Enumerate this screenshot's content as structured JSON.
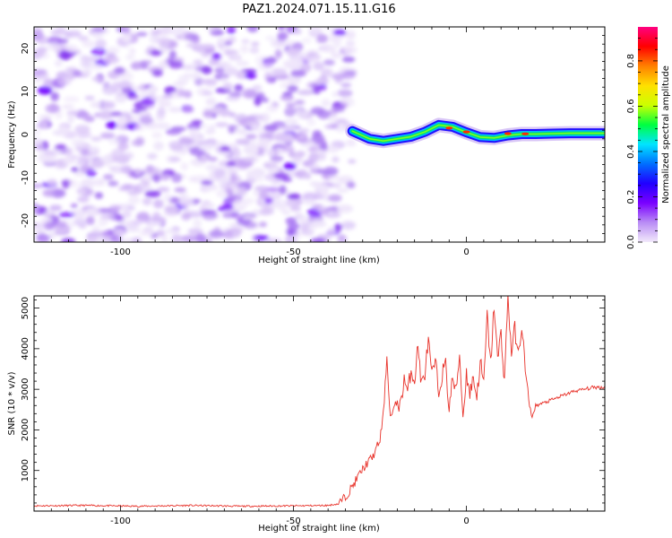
{
  "figure": {
    "title": "PAZ1.2024.071.15.11.G16"
  },
  "chart_data": [
    {
      "type": "heatmap",
      "xlabel": "Height of straight line (km)",
      "ylabel": "Frequency (Hz)",
      "xlim": [
        -125,
        40
      ],
      "ylim": [
        -25,
        25
      ],
      "xticks": [
        -100,
        -50,
        0
      ],
      "yticks": [
        -20,
        -10,
        0,
        10,
        20
      ],
      "noise_region_x": [
        -125,
        -33
      ],
      "signal_start_x": -33,
      "signal_trace": {
        "x": [
          -33,
          -28,
          -24,
          -20,
          -16,
          -12,
          -8,
          -4,
          0,
          4,
          8,
          12,
          16,
          20,
          25,
          30,
          35,
          40
        ],
        "y": [
          0.8,
          -1.0,
          -1.5,
          -1.0,
          -0.5,
          0.6,
          2.2,
          1.8,
          0.5,
          -0.6,
          -0.8,
          -0.2,
          0.1,
          0.1,
          0.2,
          0.3,
          0.3,
          0.3
        ]
      },
      "colorbar": {
        "label": "Normalized spectral amplitude",
        "ticks": [
          "0.0",
          "0.2",
          "0.4",
          "0.6",
          "0.8"
        ],
        "range": [
          0,
          0.95
        ],
        "colors": [
          "#f2e9fb",
          "#b98cf5",
          "#7a00ff",
          "#2000ff",
          "#0070ff",
          "#00e5ff",
          "#00ff40",
          "#ccff00",
          "#ffe000",
          "#ff8000",
          "#ff0000",
          "#ff0080"
        ]
      }
    },
    {
      "type": "line",
      "xlabel": "Height of straight line (km)",
      "ylabel": "SNR (10 * v/v)",
      "xlim": [
        -125,
        40
      ],
      "ylim": [
        0,
        5300
      ],
      "xticks": [
        -100,
        -50,
        0
      ],
      "yticks": [
        1000,
        2000,
        3000,
        4000,
        5000
      ],
      "series": [
        {
          "color": "#e8322a",
          "x": [
            -125,
            -110,
            -95,
            -80,
            -65,
            -50,
            -40,
            -37,
            -35,
            -33,
            -31,
            -29,
            -27,
            -25,
            -24,
            -23,
            -22,
            -21,
            -20,
            -19,
            -18,
            -17,
            -16,
            -15,
            -14,
            -13,
            -12,
            -11,
            -10,
            -9,
            -8,
            -7,
            -6,
            -5,
            -4,
            -3,
            -2,
            -1,
            0,
            1,
            2,
            3,
            4,
            5,
            6,
            7,
            8,
            9,
            10,
            11,
            12,
            13,
            14,
            15,
            16,
            17,
            18,
            19,
            20,
            22,
            25,
            28,
            31,
            34,
            37,
            40
          ],
          "y": [
            130,
            140,
            120,
            140,
            120,
            130,
            140,
            180,
            350,
            600,
            900,
            1150,
            1350,
            1750,
            2400,
            3800,
            2300,
            2500,
            2700,
            2600,
            3300,
            2900,
            3500,
            3200,
            4100,
            3100,
            3400,
            4200,
            3300,
            3700,
            2900,
            3400,
            3600,
            2500,
            3300,
            2900,
            3900,
            2300,
            3400,
            2900,
            3300,
            2800,
            3700,
            3100,
            4800,
            3600,
            5100,
            3700,
            4400,
            3200,
            5300,
            3900,
            4500,
            3800,
            4600,
            3500,
            2700,
            2300,
            2600,
            2650,
            2750,
            2850,
            2950,
            3000,
            3050,
            3050
          ]
        }
      ]
    }
  ]
}
